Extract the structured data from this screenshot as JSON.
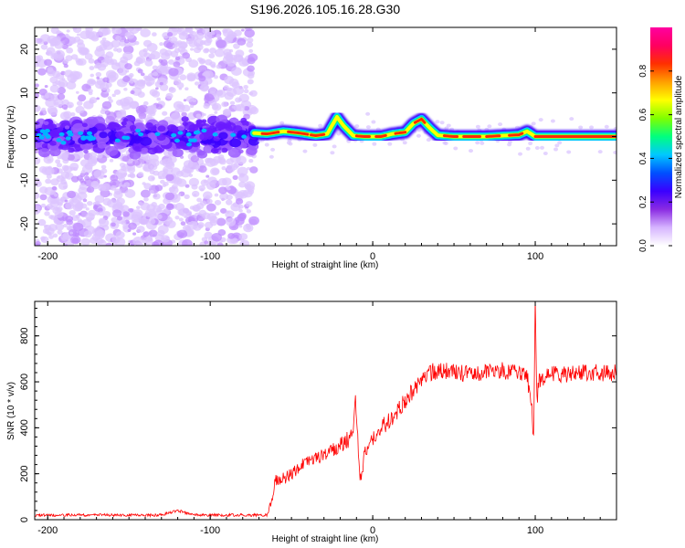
{
  "title": "S196.2026.105.16.28.G30",
  "chart_data": [
    {
      "type": "heatmap",
      "xlabel": "Height of straight line (km)",
      "ylabel": "Frequency (Hz)",
      "xlim": [
        -208,
        150
      ],
      "ylim": [
        -25,
        25
      ],
      "xticks": [
        -200,
        -100,
        0,
        100
      ],
      "yticks": [
        -20,
        -10,
        0,
        10,
        20
      ],
      "colorbar": {
        "label": "Normalized spectral amplitude",
        "range": [
          0,
          1
        ],
        "ticks": [
          "0.0",
          "0.2",
          "0.4",
          "0.6",
          "0.8"
        ],
        "colormap": [
          "#ffffff",
          "#d6b4ff",
          "#8a2be2",
          "#3a00ff",
          "#0050ff",
          "#00c8ff",
          "#00ff7f",
          "#7fff00",
          "#ffff00",
          "#ffa000",
          "#ff3000",
          "#ff0060",
          "#ff00a0"
        ]
      },
      "noise_region": [
        -208,
        -73
      ],
      "ridge": [
        [
          -73,
          0.8
        ],
        [
          -65,
          0.6
        ],
        [
          -55,
          1.2
        ],
        [
          -45,
          0.8
        ],
        [
          -35,
          0.2
        ],
        [
          -28,
          0.6
        ],
        [
          -22,
          4.5
        ],
        [
          -18,
          2.5
        ],
        [
          -12,
          0.2
        ],
        [
          -5,
          0.0
        ],
        [
          5,
          0.0
        ],
        [
          12,
          0.6
        ],
        [
          20,
          1.0
        ],
        [
          25,
          3.0
        ],
        [
          30,
          4.0
        ],
        [
          35,
          2.0
        ],
        [
          40,
          0.3
        ],
        [
          50,
          0.0
        ],
        [
          60,
          0.0
        ],
        [
          70,
          0.0
        ],
        [
          80,
          0.2
        ],
        [
          90,
          0.4
        ],
        [
          95,
          1.2
        ],
        [
          100,
          0.0
        ],
        [
          150,
          0.0
        ]
      ]
    },
    {
      "type": "line",
      "xlabel": "Height of straight line (km)",
      "ylabel": "SNR (10 * v/v)",
      "xlim": [
        -208,
        150
      ],
      "ylim": [
        0,
        950
      ],
      "xticks": [
        -200,
        -100,
        0,
        100
      ],
      "yticks": [
        0,
        200,
        400,
        600,
        800
      ],
      "color": "#ff0000",
      "x": [
        -208,
        -190,
        -170,
        -150,
        -130,
        -120,
        -110,
        -90,
        -80,
        -70,
        -65,
        -63,
        -60,
        -55,
        -50,
        -45,
        -40,
        -35,
        -30,
        -25,
        -20,
        -15,
        -12,
        -11,
        -10,
        -8,
        -7,
        -5,
        0,
        5,
        10,
        15,
        20,
        25,
        30,
        35,
        40,
        50,
        60,
        70,
        80,
        90,
        95,
        98,
        99,
        100,
        101,
        102,
        105,
        110,
        120,
        130,
        140,
        150
      ],
      "y": [
        20,
        20,
        20,
        20,
        20,
        40,
        20,
        20,
        20,
        20,
        20,
        60,
        170,
        180,
        200,
        230,
        250,
        270,
        280,
        300,
        320,
        350,
        390,
        550,
        450,
        200,
        170,
        300,
        350,
        400,
        430,
        470,
        520,
        560,
        600,
        640,
        650,
        640,
        640,
        640,
        650,
        640,
        620,
        500,
        340,
        950,
        500,
        600,
        620,
        640,
        630,
        640,
        640,
        640
      ]
    }
  ]
}
